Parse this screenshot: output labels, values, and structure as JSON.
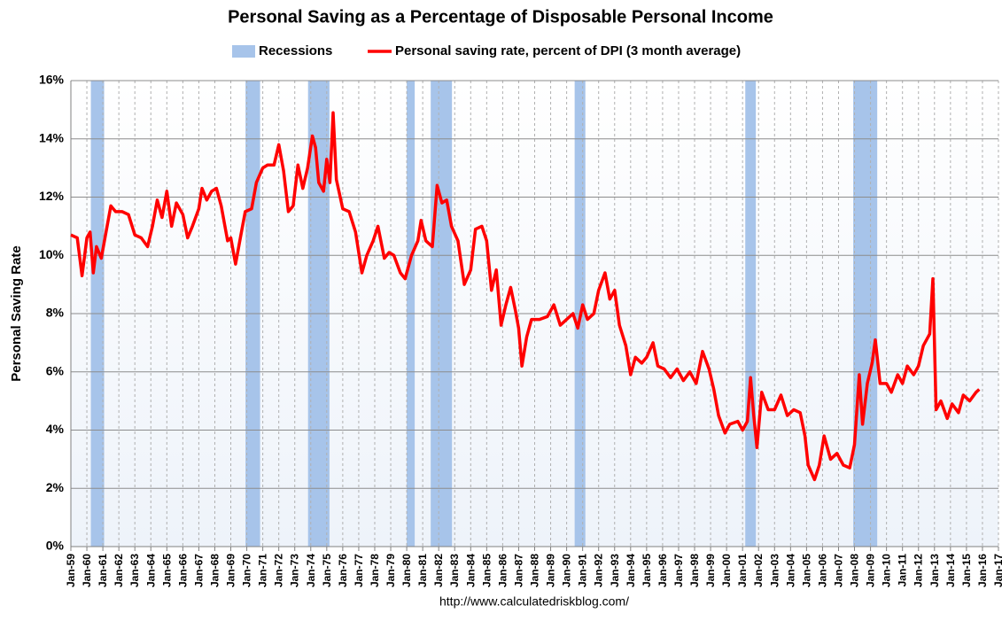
{
  "chart_data": {
    "type": "line",
    "title": "Personal Saving as a Percentage of Disposable Personal Income",
    "y_label": "Personal Saving Rate",
    "source": "http://www.calculatedriskblog.com/",
    "xlim": [
      1959,
      2017
    ],
    "ylim": [
      0,
      16
    ],
    "grid": true,
    "yticks": [
      {
        "value": 0,
        "label": "0%"
      },
      {
        "value": 2,
        "label": "2%"
      },
      {
        "value": 4,
        "label": "4%"
      },
      {
        "value": 6,
        "label": "6%"
      },
      {
        "value": 8,
        "label": "8%"
      },
      {
        "value": 10,
        "label": "10%"
      },
      {
        "value": 12,
        "label": "12%"
      },
      {
        "value": 14,
        "label": "14%"
      },
      {
        "value": 16,
        "label": "16%"
      }
    ],
    "xticks": [
      {
        "value": 1959,
        "label": "Jan-59"
      },
      {
        "value": 1960,
        "label": "Jan-60"
      },
      {
        "value": 1961,
        "label": "Jan-61"
      },
      {
        "value": 1962,
        "label": "Jan-62"
      },
      {
        "value": 1963,
        "label": "Jan-63"
      },
      {
        "value": 1964,
        "label": "Jan-64"
      },
      {
        "value": 1965,
        "label": "Jan-65"
      },
      {
        "value": 1966,
        "label": "Jan-66"
      },
      {
        "value": 1967,
        "label": "Jan-67"
      },
      {
        "value": 1968,
        "label": "Jan-68"
      },
      {
        "value": 1969,
        "label": "Jan-69"
      },
      {
        "value": 1970,
        "label": "Jan-70"
      },
      {
        "value": 1971,
        "label": "Jan-71"
      },
      {
        "value": 1972,
        "label": "Jan-72"
      },
      {
        "value": 1973,
        "label": "Jan-73"
      },
      {
        "value": 1974,
        "label": "Jan-74"
      },
      {
        "value": 1975,
        "label": "Jan-75"
      },
      {
        "value": 1976,
        "label": "Jan-76"
      },
      {
        "value": 1977,
        "label": "Jan-77"
      },
      {
        "value": 1978,
        "label": "Jan-78"
      },
      {
        "value": 1979,
        "label": "Jan-79"
      },
      {
        "value": 1980,
        "label": "Jan-80"
      },
      {
        "value": 1981,
        "label": "Jan-81"
      },
      {
        "value": 1982,
        "label": "Jan-82"
      },
      {
        "value": 1983,
        "label": "Jan-83"
      },
      {
        "value": 1984,
        "label": "Jan-84"
      },
      {
        "value": 1985,
        "label": "Jan-85"
      },
      {
        "value": 1986,
        "label": "Jan-86"
      },
      {
        "value": 1987,
        "label": "Jan-87"
      },
      {
        "value": 1988,
        "label": "Jan-88"
      },
      {
        "value": 1989,
        "label": "Jan-89"
      },
      {
        "value": 1990,
        "label": "Jan-90"
      },
      {
        "value": 1991,
        "label": "Jan-91"
      },
      {
        "value": 1992,
        "label": "Jan-92"
      },
      {
        "value": 1993,
        "label": "Jan-93"
      },
      {
        "value": 1994,
        "label": "Jan-94"
      },
      {
        "value": 1995,
        "label": "Jan-95"
      },
      {
        "value": 1996,
        "label": "Jan-96"
      },
      {
        "value": 1997,
        "label": "Jan-97"
      },
      {
        "value": 1998,
        "label": "Jan-98"
      },
      {
        "value": 1999,
        "label": "Jan-99"
      },
      {
        "value": 2000,
        "label": "Jan-00"
      },
      {
        "value": 2001,
        "label": "Jan-01"
      },
      {
        "value": 2002,
        "label": "Jan-02"
      },
      {
        "value": 2003,
        "label": "Jan-03"
      },
      {
        "value": 2004,
        "label": "Jan-04"
      },
      {
        "value": 2005,
        "label": "Jan-05"
      },
      {
        "value": 2006,
        "label": "Jan-06"
      },
      {
        "value": 2007,
        "label": "Jan-07"
      },
      {
        "value": 2008,
        "label": "Jan-08"
      },
      {
        "value": 2009,
        "label": "Jan-09"
      },
      {
        "value": 2010,
        "label": "Jan-10"
      },
      {
        "value": 2011,
        "label": "Jan-11"
      },
      {
        "value": 2012,
        "label": "Jan-12"
      },
      {
        "value": 2013,
        "label": "Jan-13"
      },
      {
        "value": 2014,
        "label": "Jan-14"
      },
      {
        "value": 2015,
        "label": "Jan-15"
      },
      {
        "value": 2016,
        "label": "Jan-16"
      },
      {
        "value": 2017,
        "label": "Jan-17"
      }
    ],
    "recessions": {
      "name": "Recessions",
      "color": "#a7c4ea",
      "spans": [
        [
          1960.25,
          1961.08
        ],
        [
          1969.92,
          1970.83
        ],
        [
          1973.83,
          1975.17
        ],
        [
          1980.0,
          1980.5
        ],
        [
          1981.5,
          1982.83
        ],
        [
          1990.5,
          1991.17
        ],
        [
          2001.17,
          2001.83
        ],
        [
          2007.92,
          2009.42
        ]
      ]
    },
    "series": [
      {
        "name": "Personal saving rate, percent of DPI (3 month average)",
        "color": "#ff0000",
        "x": [
          1959.0,
          1959.4,
          1959.7,
          1960.0,
          1960.2,
          1960.4,
          1960.6,
          1960.9,
          1961.2,
          1961.5,
          1961.8,
          1962.2,
          1962.6,
          1963.0,
          1963.4,
          1963.8,
          1964.1,
          1964.4,
          1964.7,
          1965.0,
          1965.3,
          1965.6,
          1966.0,
          1966.3,
          1966.6,
          1967.0,
          1967.2,
          1967.5,
          1967.8,
          1968.1,
          1968.4,
          1968.8,
          1969.0,
          1969.3,
          1969.6,
          1969.9,
          1970.3,
          1970.6,
          1971.0,
          1971.3,
          1971.7,
          1972.0,
          1972.3,
          1972.6,
          1972.9,
          1973.2,
          1973.5,
          1973.8,
          1974.1,
          1974.3,
          1974.5,
          1974.8,
          1975.0,
          1975.2,
          1975.4,
          1975.6,
          1976.0,
          1976.4,
          1976.8,
          1977.2,
          1977.5,
          1977.9,
          1978.2,
          1978.6,
          1978.9,
          1979.2,
          1979.6,
          1979.9,
          1980.3,
          1980.7,
          1980.9,
          1981.2,
          1981.6,
          1981.9,
          1982.2,
          1982.5,
          1982.8,
          1983.2,
          1983.6,
          1984.0,
          1984.3,
          1984.7,
          1985.0,
          1985.3,
          1985.6,
          1985.9,
          1986.2,
          1986.5,
          1986.8,
          1987.0,
          1987.2,
          1987.5,
          1987.8,
          1988.3,
          1988.8,
          1989.2,
          1989.6,
          1990.0,
          1990.4,
          1990.7,
          1991.0,
          1991.3,
          1991.7,
          1992.0,
          1992.4,
          1992.7,
          1993.0,
          1993.3,
          1993.7,
          1994.0,
          1994.3,
          1994.7,
          1995.0,
          1995.4,
          1995.7,
          1996.1,
          1996.5,
          1996.9,
          1997.3,
          1997.7,
          1998.1,
          1998.5,
          1998.9,
          1999.2,
          1999.5,
          1999.9,
          2000.2,
          2000.7,
          2001.0,
          2001.3,
          2001.5,
          2001.7,
          2001.9,
          2002.2,
          2002.6,
          2003.0,
          2003.4,
          2003.8,
          2004.2,
          2004.6,
          2004.9,
          2005.1,
          2005.5,
          2005.8,
          2006.1,
          2006.5,
          2006.9,
          2007.3,
          2007.7,
          2008.0,
          2008.3,
          2008.5,
          2008.8,
          2009.1,
          2009.3,
          2009.6,
          2010.0,
          2010.3,
          2010.7,
          2011.0,
          2011.3,
          2011.7,
          2012.0,
          2012.3,
          2012.7,
          2012.9,
          2013.1,
          2013.4,
          2013.8,
          2014.1,
          2014.5,
          2014.8,
          2015.2,
          2015.6,
          2015.8
        ],
        "values": [
          10.7,
          10.6,
          9.3,
          10.6,
          10.8,
          9.4,
          10.3,
          9.9,
          10.8,
          11.7,
          11.5,
          11.5,
          11.4,
          10.7,
          10.6,
          10.3,
          11.0,
          11.9,
          11.3,
          12.2,
          11.0,
          11.8,
          11.4,
          10.6,
          11.0,
          11.6,
          12.3,
          11.9,
          12.2,
          12.3,
          11.7,
          10.5,
          10.6,
          9.7,
          10.6,
          11.5,
          11.6,
          12.5,
          13.0,
          13.1,
          13.1,
          13.8,
          12.9,
          11.5,
          11.7,
          13.1,
          12.3,
          13.0,
          14.1,
          13.7,
          12.5,
          12.2,
          13.3,
          12.5,
          14.9,
          12.6,
          11.6,
          11.5,
          10.8,
          9.4,
          10.0,
          10.5,
          11.0,
          9.9,
          10.1,
          10.0,
          9.4,
          9.2,
          10.0,
          10.5,
          11.2,
          10.5,
          10.3,
          12.4,
          11.8,
          11.9,
          11.0,
          10.5,
          9.0,
          9.5,
          10.9,
          11.0,
          10.5,
          8.8,
          9.5,
          7.6,
          8.3,
          8.9,
          8.1,
          7.5,
          6.2,
          7.2,
          7.8,
          7.8,
          7.9,
          8.3,
          7.6,
          7.8,
          8.0,
          7.5,
          8.3,
          7.8,
          8.0,
          8.8,
          9.4,
          8.5,
          8.8,
          7.6,
          6.9,
          5.9,
          6.5,
          6.3,
          6.5,
          7.0,
          6.2,
          6.1,
          5.8,
          6.1,
          5.7,
          6.0,
          5.6,
          6.7,
          6.1,
          5.4,
          4.5,
          3.9,
          4.2,
          4.3,
          4.0,
          4.3,
          5.8,
          4.5,
          3.4,
          5.3,
          4.7,
          4.7,
          5.2,
          4.5,
          4.7,
          4.6,
          3.8,
          2.8,
          2.3,
          2.8,
          3.8,
          3.0,
          3.2,
          2.8,
          2.7,
          3.5,
          5.9,
          4.2,
          5.6,
          6.3,
          7.1,
          5.6,
          5.6,
          5.3,
          5.9,
          5.6,
          6.2,
          5.9,
          6.2,
          6.9,
          7.3,
          9.2,
          4.7,
          5.0,
          4.4,
          4.9,
          4.6,
          5.2,
          5.0,
          5.3,
          5.4
        ]
      }
    ]
  }
}
